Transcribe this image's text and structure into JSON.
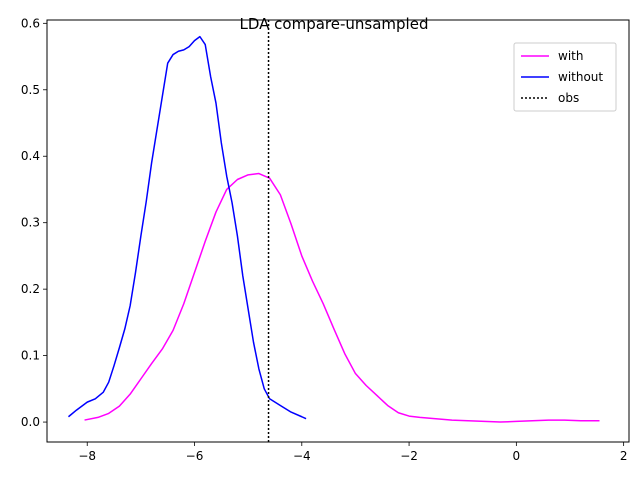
{
  "chart_data": {
    "type": "line",
    "title": "LDA compare-unsampled",
    "xlabel": "",
    "ylabel": "",
    "xlim": [
      -8.75,
      2.1
    ],
    "ylim": [
      -0.03,
      0.605
    ],
    "xticks": [
      -8,
      -6,
      -4,
      -2,
      0,
      2
    ],
    "xtick_labels": [
      "−8",
      "−6",
      "−4",
      "−2",
      "0",
      "2"
    ],
    "yticks": [
      0.0,
      0.1,
      0.2,
      0.3,
      0.4,
      0.5,
      0.6
    ],
    "ytick_labels": [
      "0.0",
      "0.1",
      "0.2",
      "0.3",
      "0.4",
      "0.5",
      "0.6"
    ],
    "grid": false,
    "legend_position": "top-right",
    "series": [
      {
        "name": "with",
        "color": "#ff00ff",
        "style": "solid",
        "x": [
          -8.05,
          -7.8,
          -7.6,
          -7.4,
          -7.2,
          -7.0,
          -6.8,
          -6.6,
          -6.4,
          -6.2,
          -6.0,
          -5.8,
          -5.6,
          -5.4,
          -5.2,
          -5.0,
          -4.8,
          -4.6,
          -4.4,
          -4.2,
          -4.0,
          -3.8,
          -3.6,
          -3.4,
          -3.2,
          -3.0,
          -2.8,
          -2.6,
          -2.4,
          -2.2,
          -2.0,
          -1.8,
          -1.5,
          -1.2,
          -0.9,
          -0.6,
          -0.3,
          0.0,
          0.3,
          0.6,
          0.9,
          1.2,
          1.55
        ],
        "y": [
          0.003,
          0.007,
          0.013,
          0.024,
          0.042,
          0.065,
          0.088,
          0.11,
          0.138,
          0.178,
          0.225,
          0.272,
          0.316,
          0.35,
          0.365,
          0.372,
          0.374,
          0.367,
          0.342,
          0.298,
          0.25,
          0.212,
          0.178,
          0.14,
          0.103,
          0.073,
          0.055,
          0.04,
          0.025,
          0.014,
          0.009,
          0.007,
          0.005,
          0.003,
          0.002,
          0.001,
          0.0,
          0.001,
          0.002,
          0.003,
          0.003,
          0.002,
          0.002
        ]
      },
      {
        "name": "without",
        "color": "#0000ff",
        "style": "solid",
        "x": [
          -8.35,
          -8.2,
          -8.0,
          -7.85,
          -7.7,
          -7.6,
          -7.5,
          -7.4,
          -7.3,
          -7.2,
          -7.1,
          -7.0,
          -6.9,
          -6.8,
          -6.7,
          -6.6,
          -6.5,
          -6.4,
          -6.3,
          -6.2,
          -6.1,
          -6.0,
          -5.9,
          -5.8,
          -5.7,
          -5.6,
          -5.5,
          -5.4,
          -5.3,
          -5.2,
          -5.1,
          -5.0,
          -4.9,
          -4.8,
          -4.7,
          -4.6,
          -4.4,
          -4.2,
          -4.0,
          -3.92
        ],
        "y": [
          0.008,
          0.018,
          0.03,
          0.035,
          0.045,
          0.06,
          0.085,
          0.112,
          0.14,
          0.175,
          0.225,
          0.28,
          0.332,
          0.39,
          0.44,
          0.49,
          0.54,
          0.553,
          0.558,
          0.56,
          0.565,
          0.574,
          0.58,
          0.568,
          0.52,
          0.48,
          0.42,
          0.37,
          0.33,
          0.28,
          0.22,
          0.17,
          0.12,
          0.08,
          0.05,
          0.035,
          0.025,
          0.015,
          0.008,
          0.005
        ]
      },
      {
        "name": "obs",
        "color": "#000000",
        "style": "dotted",
        "vline_x": -4.62
      }
    ]
  }
}
